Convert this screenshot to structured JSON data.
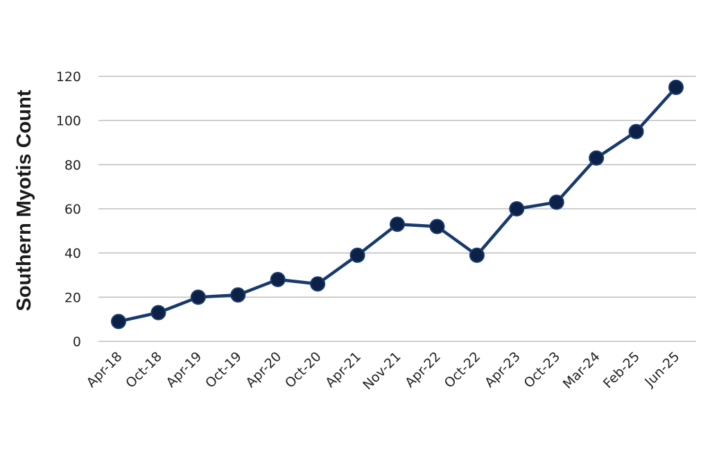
{
  "chart_data": {
    "type": "line",
    "title": "",
    "xlabel": "",
    "ylabel": "Southern Myotis Count",
    "categories": [
      "Apr-18",
      "Oct-18",
      "Apr-19",
      "Oct-19",
      "Apr-20",
      "Oct-20",
      "Apr-21",
      "Nov-21",
      "Apr-22",
      "Oct-22",
      "Apr-23",
      "Oct-23",
      "Mar-24",
      "Feb-25",
      "Jun-25"
    ],
    "series": [
      {
        "values": [
          9,
          13,
          20,
          21,
          28,
          26,
          39,
          53,
          52,
          39,
          60,
          63,
          83,
          95,
          115
        ]
      }
    ],
    "ylim": [
      0,
      120
    ],
    "yticks": [
      0,
      20,
      40,
      60,
      80,
      100,
      120
    ],
    "grid": "horizontal",
    "legend": "none",
    "colors": {
      "line": "#173a6e",
      "marker": "#0d2147",
      "grid": "#bdbdbd"
    }
  }
}
